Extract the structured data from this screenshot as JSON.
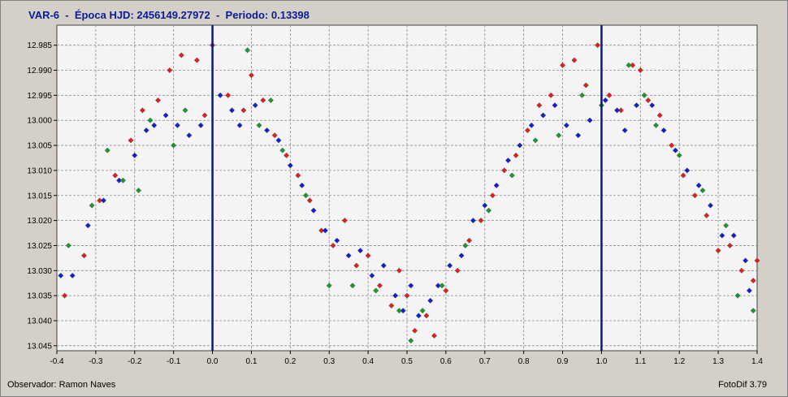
{
  "header": {
    "title": "VAR-6  -  Época HJD: 2456149.27972  -  Periodo: 0.13398"
  },
  "footer": {
    "observer": "Observador: Ramon Naves",
    "software": "FotoDif 3.79"
  },
  "colors": {
    "series": [
      "#e0201a",
      "#1020d0",
      "#1a9a2a"
    ],
    "phase_lines": "#0a1a7a",
    "grid": "#8a8a8a",
    "plot_bg": "#f4f4f4"
  },
  "chart_data": {
    "type": "scatter",
    "title": "VAR-6  -  Época HJD: 2456149.27972  -  Periodo: 0.13398",
    "xlabel": "",
    "ylabel": "",
    "xlim": [
      -0.4,
      1.4
    ],
    "ylim": [
      12.981,
      13.046
    ],
    "y_inverted": true,
    "grid": true,
    "x_ticks": [
      "-0.4",
      "-0.3",
      "-0.2",
      "-0.1",
      "0.0",
      "0.1",
      "0.2",
      "0.3",
      "0.4",
      "0.5",
      "0.6",
      "0.7",
      "0.8",
      "0.9",
      "1.0",
      "1.1",
      "1.2",
      "1.3",
      "1.4"
    ],
    "y_ticks": [
      "12.985",
      "12.990",
      "12.995",
      "13.000",
      "13.005",
      "13.010",
      "13.015",
      "13.020",
      "13.025",
      "13.030",
      "13.035",
      "13.040",
      "13.045"
    ],
    "vertical_lines": [
      0.0,
      1.0
    ],
    "light_curve": {
      "phase": [
        0.0,
        0.08,
        0.15,
        0.22,
        0.3,
        0.38,
        0.45,
        0.5,
        0.55,
        0.62,
        0.7,
        0.78,
        0.85,
        0.92,
        1.0
      ],
      "magnitude": [
        12.996,
        12.995,
        12.999,
        13.008,
        13.019,
        13.028,
        13.034,
        13.036,
        13.034,
        13.027,
        13.017,
        13.007,
        12.999,
        12.995,
        12.996
      ]
    },
    "series": [
      {
        "color": "#e0201a",
        "points": [
          [
            -0.38,
            13.035
          ],
          [
            -0.33,
            13.027
          ],
          [
            -0.29,
            13.016
          ],
          [
            -0.25,
            13.011
          ],
          [
            -0.21,
            13.004
          ],
          [
            -0.18,
            12.998
          ],
          [
            -0.14,
            12.996
          ],
          [
            -0.11,
            12.99
          ],
          [
            -0.08,
            12.987
          ],
          [
            -0.04,
            12.988
          ],
          [
            -0.02,
            12.999
          ],
          [
            0.0,
            12.985
          ],
          [
            0.04,
            12.995
          ],
          [
            0.08,
            12.998
          ],
          [
            0.1,
            12.991
          ],
          [
            0.13,
            12.996
          ],
          [
            0.16,
            13.003
          ],
          [
            0.19,
            13.007
          ],
          [
            0.22,
            13.011
          ],
          [
            0.25,
            13.016
          ],
          [
            0.28,
            13.022
          ],
          [
            0.31,
            13.025
          ],
          [
            0.34,
            13.02
          ],
          [
            0.37,
            13.029
          ],
          [
            0.4,
            13.027
          ],
          [
            0.43,
            13.033
          ],
          [
            0.46,
            13.037
          ],
          [
            0.48,
            13.03
          ],
          [
            0.5,
            13.035
          ],
          [
            0.52,
            13.042
          ],
          [
            0.55,
            13.039
          ],
          [
            0.57,
            13.043
          ],
          [
            0.6,
            13.034
          ],
          [
            0.63,
            13.03
          ],
          [
            0.66,
            13.024
          ],
          [
            0.69,
            13.02
          ],
          [
            0.72,
            13.015
          ],
          [
            0.75,
            13.01
          ],
          [
            0.78,
            13.007
          ],
          [
            0.81,
            13.002
          ],
          [
            0.84,
            12.997
          ],
          [
            0.87,
            12.995
          ],
          [
            0.9,
            12.989
          ],
          [
            0.93,
            12.988
          ],
          [
            0.96,
            12.993
          ],
          [
            0.99,
            12.985
          ],
          [
            1.02,
            12.995
          ],
          [
            1.05,
            12.998
          ],
          [
            1.08,
            12.989
          ],
          [
            1.1,
            12.99
          ],
          [
            1.12,
            12.996
          ],
          [
            1.15,
            12.999
          ],
          [
            1.18,
            13.005
          ],
          [
            1.21,
            13.011
          ],
          [
            1.24,
            13.015
          ],
          [
            1.27,
            13.019
          ],
          [
            1.3,
            13.026
          ],
          [
            1.33,
            13.025
          ],
          [
            1.36,
            13.03
          ],
          [
            1.39,
            13.032
          ],
          [
            1.4,
            13.028
          ]
        ]
      },
      {
        "color": "#1020d0",
        "points": [
          [
            -0.39,
            13.031
          ],
          [
            -0.36,
            13.031
          ],
          [
            -0.32,
            13.021
          ],
          [
            -0.28,
            13.016
          ],
          [
            -0.24,
            13.012
          ],
          [
            -0.2,
            13.007
          ],
          [
            -0.17,
            13.002
          ],
          [
            -0.15,
            13.001
          ],
          [
            -0.12,
            12.999
          ],
          [
            -0.09,
            13.001
          ],
          [
            -0.06,
            13.003
          ],
          [
            -0.03,
            13.001
          ],
          [
            0.02,
            12.995
          ],
          [
            0.05,
            12.998
          ],
          [
            0.07,
            13.001
          ],
          [
            0.11,
            12.997
          ],
          [
            0.14,
            13.002
          ],
          [
            0.17,
            13.004
          ],
          [
            0.2,
            13.009
          ],
          [
            0.23,
            13.013
          ],
          [
            0.26,
            13.018
          ],
          [
            0.29,
            13.022
          ],
          [
            0.32,
            13.024
          ],
          [
            0.35,
            13.027
          ],
          [
            0.38,
            13.026
          ],
          [
            0.41,
            13.031
          ],
          [
            0.44,
            13.029
          ],
          [
            0.47,
            13.035
          ],
          [
            0.49,
            13.038
          ],
          [
            0.51,
            13.033
          ],
          [
            0.53,
            13.039
          ],
          [
            0.56,
            13.036
          ],
          [
            0.58,
            13.033
          ],
          [
            0.61,
            13.029
          ],
          [
            0.64,
            13.027
          ],
          [
            0.67,
            13.02
          ],
          [
            0.7,
            13.017
          ],
          [
            0.73,
            13.013
          ],
          [
            0.76,
            13.008
          ],
          [
            0.79,
            13.005
          ],
          [
            0.82,
            13.001
          ],
          [
            0.85,
            12.999
          ],
          [
            0.88,
            12.997
          ],
          [
            0.91,
            13.001
          ],
          [
            0.94,
            13.003
          ],
          [
            0.97,
            13.0
          ],
          [
            1.01,
            12.996
          ],
          [
            1.04,
            12.998
          ],
          [
            1.06,
            13.002
          ],
          [
            1.09,
            12.997
          ],
          [
            1.13,
            12.997
          ],
          [
            1.16,
            13.002
          ],
          [
            1.19,
            13.006
          ],
          [
            1.22,
            13.01
          ],
          [
            1.25,
            13.013
          ],
          [
            1.28,
            13.017
          ],
          [
            1.31,
            13.023
          ],
          [
            1.34,
            13.023
          ],
          [
            1.37,
            13.028
          ],
          [
            1.38,
            13.034
          ]
        ]
      },
      {
        "color": "#1a9a2a",
        "points": [
          [
            -0.37,
            13.025
          ],
          [
            -0.31,
            13.017
          ],
          [
            -0.27,
            13.006
          ],
          [
            -0.23,
            13.012
          ],
          [
            -0.19,
            13.014
          ],
          [
            -0.16,
            13.0
          ],
          [
            -0.1,
            13.005
          ],
          [
            -0.07,
            12.998
          ],
          [
            0.09,
            12.986
          ],
          [
            0.12,
            13.001
          ],
          [
            0.15,
            12.996
          ],
          [
            0.18,
            13.006
          ],
          [
            0.24,
            13.015
          ],
          [
            0.3,
            13.033
          ],
          [
            0.36,
            13.033
          ],
          [
            0.42,
            13.034
          ],
          [
            0.48,
            13.038
          ],
          [
            0.51,
            13.044
          ],
          [
            0.54,
            13.038
          ],
          [
            0.59,
            13.033
          ],
          [
            0.65,
            13.025
          ],
          [
            0.71,
            13.018
          ],
          [
            0.77,
            13.011
          ],
          [
            0.83,
            13.004
          ],
          [
            0.89,
            13.003
          ],
          [
            0.95,
            12.995
          ],
          [
            1.0,
            12.997
          ],
          [
            1.07,
            12.989
          ],
          [
            1.11,
            12.995
          ],
          [
            1.14,
            13.001
          ],
          [
            1.2,
            13.007
          ],
          [
            1.26,
            13.014
          ],
          [
            1.32,
            13.021
          ],
          [
            1.35,
            13.035
          ],
          [
            1.39,
            13.038
          ]
        ]
      }
    ]
  }
}
